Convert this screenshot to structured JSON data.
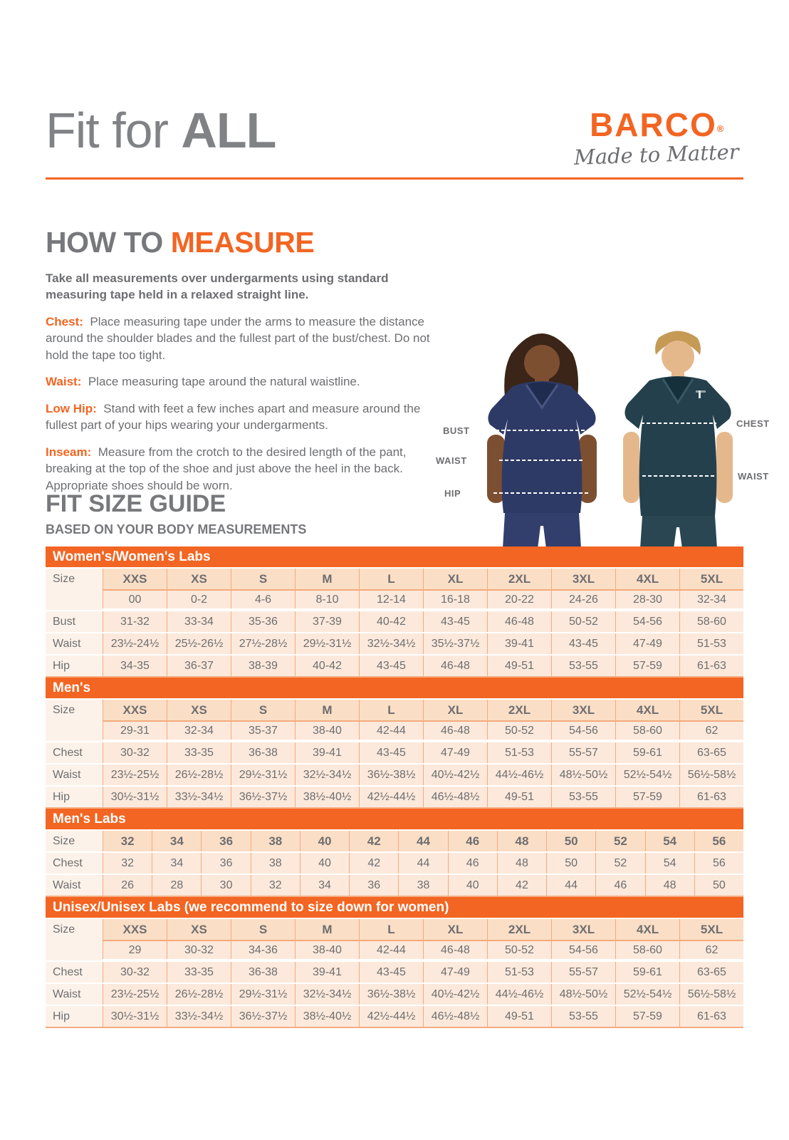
{
  "header": {
    "title_light": "Fit for ",
    "title_bold": "ALL",
    "brand_name": "BARCO",
    "brand_reg": "®",
    "brand_tagline": "Made to Matter"
  },
  "how_to_measure": {
    "title_gray": "HOW TO ",
    "title_orange": "MEASURE",
    "intro": "Take all measurements over undergarments using standard measuring tape held in a relaxed straight line.",
    "items": [
      {
        "label": "Chest:",
        "text": "Place measuring tape under the arms to measure the distance around the shoulder blades and the fullest part of the bust/chest. Do not hold the tape too tight."
      },
      {
        "label": "Waist:",
        "text": "Place measuring tape around the natural waistline."
      },
      {
        "label": "Low Hip:",
        "text": "Stand with feet a few inches apart and measure around the fullest part of your hips wearing your undergarments."
      },
      {
        "label": "Inseam:",
        "text": "Measure from the crotch to the desired length of the pant, breaking at the top of the shoe and just above the heel in the back. Appropriate shoes should be worn."
      }
    ]
  },
  "figure": {
    "labels": [
      "BUST",
      "WAIST",
      "HIP",
      "CHEST",
      "WAIST"
    ]
  },
  "size_guide": {
    "title": "FIT SIZE GUIDE",
    "subtitle": "BASED ON YOUR BODY MEASUREMENTS",
    "tables": [
      {
        "band": "Women's/Women's Labs",
        "rows": [
          {
            "label": "Size",
            "header": true,
            "cells": [
              "XXS",
              "XS",
              "S",
              "M",
              "L",
              "XL",
              "2XL",
              "3XL",
              "4XL",
              "5XL"
            ]
          },
          {
            "label": "",
            "sub": true,
            "cells": [
              "00",
              "0-2",
              "4-6",
              "8-10",
              "12-14",
              "16-18",
              "20-22",
              "24-26",
              "28-30",
              "32-34"
            ]
          },
          {
            "label": "Bust",
            "cells": [
              "31-32",
              "33-34",
              "35-36",
              "37-39",
              "40-42",
              "43-45",
              "46-48",
              "50-52",
              "54-56",
              "58-60"
            ]
          },
          {
            "label": "Waist",
            "cells": [
              "23½-24½",
              "25½-26½",
              "27½-28½",
              "29½-31½",
              "32½-34½",
              "35½-37½",
              "39-41",
              "43-45",
              "47-49",
              "51-53"
            ]
          },
          {
            "label": "Hip",
            "cells": [
              "34-35",
              "36-37",
              "38-39",
              "40-42",
              "43-45",
              "46-48",
              "49-51",
              "53-55",
              "57-59",
              "61-63"
            ]
          }
        ]
      },
      {
        "band": "Men's",
        "rows": [
          {
            "label": "Size",
            "header": true,
            "cells": [
              "XXS",
              "XS",
              "S",
              "M",
              "L",
              "XL",
              "2XL",
              "3XL",
              "4XL",
              "5XL"
            ]
          },
          {
            "label": "",
            "sub": true,
            "cells": [
              "29-31",
              "32-34",
              "35-37",
              "38-40",
              "42-44",
              "46-48",
              "50-52",
              "54-56",
              "58-60",
              "62"
            ]
          },
          {
            "label": "Chest",
            "cells": [
              "30-32",
              "33-35",
              "36-38",
              "39-41",
              "43-45",
              "47-49",
              "51-53",
              "55-57",
              "59-61",
              "63-65"
            ]
          },
          {
            "label": "Waist",
            "cells": [
              "23½-25½",
              "26½-28½",
              "29½-31½",
              "32½-34½",
              "36½-38½",
              "40½-42½",
              "44½-46½",
              "48½-50½",
              "52½-54½",
              "56½-58½"
            ]
          },
          {
            "label": "Hip",
            "cells": [
              "30½-31½",
              "33½-34½",
              "36½-37½",
              "38½-40½",
              "42½-44½",
              "46½-48½",
              "49-51",
              "53-55",
              "57-59",
              "61-63"
            ]
          }
        ]
      },
      {
        "band": "Men's Labs",
        "rows": [
          {
            "label": "Size",
            "header": true,
            "cells": [
              "32",
              "34",
              "36",
              "38",
              "40",
              "42",
              "44",
              "46",
              "48",
              "50",
              "52",
              "54",
              "56"
            ]
          },
          {
            "label": "Chest",
            "cells": [
              "32",
              "34",
              "36",
              "38",
              "40",
              "42",
              "44",
              "46",
              "48",
              "50",
              "52",
              "54",
              "56"
            ]
          },
          {
            "label": "Waist",
            "cells": [
              "26",
              "28",
              "30",
              "32",
              "34",
              "36",
              "38",
              "40",
              "42",
              "44",
              "46",
              "48",
              "50"
            ]
          }
        ]
      },
      {
        "band": "Unisex/Unisex Labs (we recommend to size down for women)",
        "rows": [
          {
            "label": "Size",
            "header": true,
            "cells": [
              "XXS",
              "XS",
              "S",
              "M",
              "L",
              "XL",
              "2XL",
              "3XL",
              "4XL",
              "5XL"
            ]
          },
          {
            "label": "",
            "sub": true,
            "cells": [
              "29",
              "30-32",
              "34-36",
              "38-40",
              "42-44",
              "46-48",
              "50-52",
              "54-56",
              "58-60",
              "62"
            ]
          },
          {
            "label": "Chest",
            "cells": [
              "30-32",
              "33-35",
              "36-38",
              "39-41",
              "43-45",
              "47-49",
              "51-53",
              "55-57",
              "59-61",
              "63-65"
            ]
          },
          {
            "label": "Waist",
            "cells": [
              "23½-25½",
              "26½-28½",
              "29½-31½",
              "32½-34½",
              "36½-38½",
              "40½-42½",
              "44½-46½",
              "48½-50½",
              "52½-54½",
              "56½-58½"
            ]
          },
          {
            "label": "Hip",
            "cells": [
              "30½-31½",
              "33½-34½",
              "36½-37½",
              "38½-40½",
              "42½-44½",
              "46½-48½",
              "49-51",
              "53-55",
              "57-59",
              "61-63"
            ]
          }
        ]
      }
    ]
  },
  "colors": {
    "accent_orange": "#F26522",
    "heading_gray": "#77787B",
    "body_gray": "#6D6E71",
    "band_orange": "#F26522",
    "table_header_peach": "#FBDEC6",
    "table_cell_peach": "#FCE9DB",
    "table_label_cream": "#FDF2E9",
    "table_border_salmon": "#F5AB7E",
    "womens_scrub_navy": "#2E3A66",
    "mens_scrub_teal": "#24404D"
  }
}
